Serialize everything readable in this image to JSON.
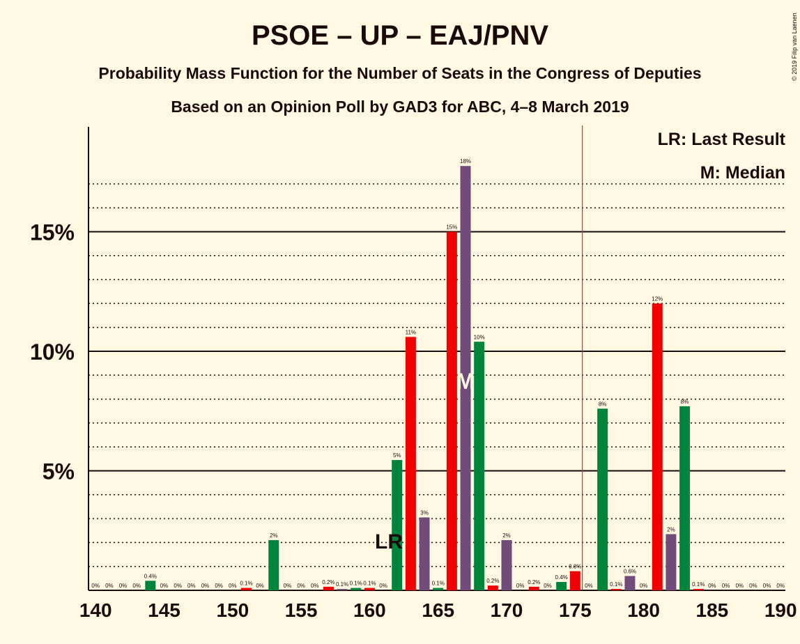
{
  "header": {
    "title": "PSOE – UP – EAJ/PNV",
    "subtitle1": "Probability Mass Function for the Number of Seats in the Congress of Deputies",
    "subtitle2": "Based on an Opinion Poll by GAD3 for ABC, 4–8 March 2019",
    "copyright": "© 2019 Filip van Laenen"
  },
  "legend": {
    "lr": "LR: Last Result",
    "median": "M: Median"
  },
  "markers": {
    "lr_text": "LR",
    "median_text": "M"
  },
  "colors": {
    "purple": "#714B79",
    "green": "#00843C",
    "red": "#F00000",
    "background": "#FFF8E3",
    "majority_line": "#C0392B"
  },
  "chart_data": {
    "type": "bar",
    "xlim": [
      140,
      190
    ],
    "ylim": [
      0,
      19
    ],
    "x_ticks": [
      140,
      145,
      150,
      155,
      160,
      165,
      170,
      175,
      180,
      185,
      190
    ],
    "y_ticks": [
      {
        "value": 5,
        "label": "5%"
      },
      {
        "value": 10,
        "label": "10%"
      },
      {
        "value": 15,
        "label": "15%"
      }
    ],
    "last_result_seats": 161,
    "median_seats": 167,
    "majority_seats": 176,
    "color_cycle": [
      "purple",
      "green",
      "red"
    ],
    "bars": [
      {
        "seats": 140,
        "value": 0,
        "label": "0%"
      },
      {
        "seats": 141,
        "value": 0,
        "label": "0%"
      },
      {
        "seats": 142,
        "value": 0,
        "label": "0%"
      },
      {
        "seats": 143,
        "value": 0,
        "label": "0%"
      },
      {
        "seats": 144,
        "value": 0.4,
        "label": "0.4%"
      },
      {
        "seats": 145,
        "value": 0,
        "label": "0%"
      },
      {
        "seats": 146,
        "value": 0,
        "label": "0%"
      },
      {
        "seats": 147,
        "value": 0,
        "label": "0%"
      },
      {
        "seats": 148,
        "value": 0,
        "label": "0%"
      },
      {
        "seats": 149,
        "value": 0,
        "label": "0%"
      },
      {
        "seats": 150,
        "value": 0,
        "label": "0%"
      },
      {
        "seats": 151,
        "value": 0.1,
        "label": "0.1%"
      },
      {
        "seats": 152,
        "value": 0,
        "label": "0%"
      },
      {
        "seats": 153,
        "value": 2.1,
        "label": "2%"
      },
      {
        "seats": 154,
        "value": 0,
        "label": "0%"
      },
      {
        "seats": 155,
        "value": 0,
        "label": "0%"
      },
      {
        "seats": 156,
        "value": 0,
        "label": "0%"
      },
      {
        "seats": 157,
        "value": 0.15,
        "label": "0.2%"
      },
      {
        "seats": 158,
        "value": 0.05,
        "label": "0.1%"
      },
      {
        "seats": 159,
        "value": 0.1,
        "label": "0.1%"
      },
      {
        "seats": 160,
        "value": 0.1,
        "label": "0.1%"
      },
      {
        "seats": 161,
        "value": 0,
        "label": "0%"
      },
      {
        "seats": 162,
        "value": 5.45,
        "label": "5%"
      },
      {
        "seats": 163,
        "value": 10.6,
        "label": "11%"
      },
      {
        "seats": 164,
        "value": 3.05,
        "label": "3%"
      },
      {
        "seats": 165,
        "value": 0.1,
        "label": "0.1%"
      },
      {
        "seats": 166,
        "value": 15.0,
        "label": "15%"
      },
      {
        "seats": 167,
        "value": 17.75,
        "label": "18%"
      },
      {
        "seats": 168,
        "value": 10.4,
        "label": "10%"
      },
      {
        "seats": 169,
        "value": 0.2,
        "label": "0.2%"
      },
      {
        "seats": 170,
        "value": 2.1,
        "label": "2%"
      },
      {
        "seats": 171,
        "value": 0,
        "label": "0%"
      },
      {
        "seats": 172,
        "value": 0.15,
        "label": "0.2%"
      },
      {
        "seats": 173,
        "value": 0,
        "label": "0%"
      },
      {
        "seats": 174,
        "value": 0.35,
        "label": "0.4%"
      },
      {
        "seats": 175,
        "value": 0.8,
        "label": "0.8%"
      },
      {
        "seats": 176,
        "value": 0,
        "label": "0%"
      },
      {
        "seats": 177,
        "value": 7.6,
        "label": "8%"
      },
      {
        "seats": 178,
        "value": 0.05,
        "label": "0.1%"
      },
      {
        "seats": 179,
        "value": 0.6,
        "label": "0.6%"
      },
      {
        "seats": 180,
        "value": 0,
        "label": "0%"
      },
      {
        "seats": 181,
        "value": 12.0,
        "label": "12%"
      },
      {
        "seats": 182,
        "value": 2.35,
        "label": "2%"
      },
      {
        "seats": 183,
        "value": 7.7,
        "label": "8%"
      },
      {
        "seats": 184,
        "value": 0.05,
        "label": "0.1%"
      },
      {
        "seats": 185,
        "value": 0,
        "label": "0%"
      },
      {
        "seats": 186,
        "value": 0,
        "label": "0%"
      },
      {
        "seats": 187,
        "value": 0,
        "label": "0%"
      },
      {
        "seats": 188,
        "value": 0,
        "label": "0%"
      },
      {
        "seats": 189,
        "value": 0,
        "label": "0%"
      },
      {
        "seats": 190,
        "value": 0,
        "label": "0%"
      }
    ]
  }
}
